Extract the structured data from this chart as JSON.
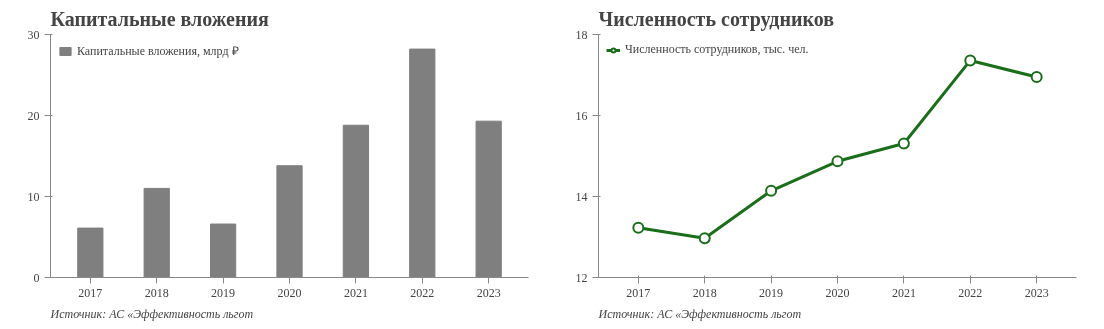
{
  "chart_data": [
    {
      "type": "bar",
      "title": "Капитальные вложения",
      "categories": [
        "2017",
        "2018",
        "2019",
        "2020",
        "2021",
        "2022",
        "2023"
      ],
      "series": [
        {
          "name": "Капитальные вложения, млрд ₽",
          "color": "#7f7f7f",
          "values": [
            6.1,
            11.0,
            6.6,
            13.8,
            18.8,
            28.2,
            19.3
          ]
        }
      ],
      "ylim": [
        0,
        30
      ],
      "yticks": [
        0,
        10,
        20,
        30
      ],
      "grid": false,
      "legend": "top left",
      "annotations": [
        "Источник: АС «Эффективность льгот"
      ]
    },
    {
      "type": "line",
      "title": "Численность сотрудников",
      "categories": [
        "2017",
        "2018",
        "2019",
        "2020",
        "2021",
        "2022",
        "2023"
      ],
      "series": [
        {
          "name": "Численность сотрудников, тыс. чел.",
          "color": "#1a6e1a",
          "values": [
            13.23,
            12.97,
            14.14,
            14.87,
            15.31,
            17.36,
            16.95
          ]
        }
      ],
      "ylim": [
        12,
        18
      ],
      "yticks": [
        12,
        14,
        16,
        18
      ],
      "grid": false,
      "legend": "top left",
      "marker": "circle",
      "line_style": "solid",
      "annotations": [
        "Источник: АС «Эффективность льгот"
      ]
    }
  ]
}
